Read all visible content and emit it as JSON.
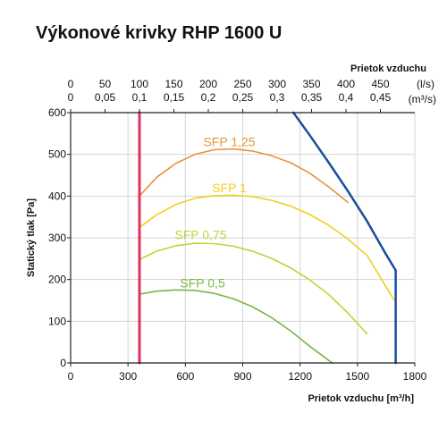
{
  "chart_data": {
    "type": "line",
    "title": "Výkonové krivky RHP 1600 U",
    "xlabel": "Prietok vzduchu [m³/h]",
    "ylabel": "Statický tlak [Pa]",
    "xlim": [
      0,
      1800
    ],
    "ylim": [
      0,
      600
    ],
    "x_ticks": [
      "0",
      "300",
      "600",
      "900",
      "1200",
      "1500",
      "1800"
    ],
    "y_ticks": [
      "0",
      "100",
      "200",
      "300",
      "400",
      "500",
      "600"
    ],
    "secondary_axis": {
      "label": "Prietok vzduchu",
      "ls_unit": "(l/s)",
      "m3s_unit": "(m³/s)",
      "ls_ticks": [
        "0",
        "50",
        "100",
        "150",
        "200",
        "250",
        "300",
        "350",
        "400",
        "450"
      ],
      "m3s_ticks": [
        "0",
        "0,05",
        "0,1",
        "0,15",
        "0,2",
        "0,25",
        "0,3",
        "0,35",
        "0,4",
        "0,45"
      ]
    },
    "grid": true,
    "series": [
      {
        "name": "SFP 1,25",
        "color": "#e8943c",
        "x": [
          360,
          450,
          550,
          650,
          750,
          850,
          950,
          1050,
          1150,
          1250,
          1350,
          1450
        ],
        "y": [
          400,
          445,
          478,
          500,
          511,
          513,
          508,
          497,
          480,
          455,
          422,
          385
        ]
      },
      {
        "name": "SFP 1",
        "color": "#f0d020",
        "x": [
          360,
          450,
          550,
          650,
          750,
          850,
          950,
          1050,
          1150,
          1250,
          1350,
          1450,
          1550,
          1690
        ],
        "y": [
          325,
          355,
          380,
          395,
          401,
          402,
          399,
          390,
          376,
          356,
          330,
          297,
          258,
          152
        ]
      },
      {
        "name": "SFP 0,75",
        "color": "#bcd63a",
        "x": [
          360,
          450,
          550,
          650,
          750,
          850,
          950,
          1050,
          1150,
          1250,
          1350,
          1450,
          1550
        ],
        "y": [
          248,
          268,
          281,
          287,
          286,
          280,
          268,
          251,
          228,
          199,
          164,
          120,
          70
        ]
      },
      {
        "name": "SFP 0,5",
        "color": "#78b640",
        "x": [
          360,
          450,
          550,
          650,
          750,
          850,
          950,
          1050,
          1150,
          1250,
          1350,
          1370
        ],
        "y": [
          165,
          172,
          175,
          174,
          167,
          154,
          135,
          109,
          77,
          40,
          6,
          0
        ]
      },
      {
        "name": "",
        "color": "#1a4e9c",
        "x": [
          1165,
          1250,
          1350,
          1450,
          1550,
          1650,
          1700,
          1700
        ],
        "y": [
          600,
          546,
          480,
          412,
          340,
          260,
          222,
          0
        ]
      },
      {
        "name": "",
        "color": "#e03060",
        "x": [
          360,
          360
        ],
        "y": [
          0,
          600
        ]
      }
    ]
  }
}
